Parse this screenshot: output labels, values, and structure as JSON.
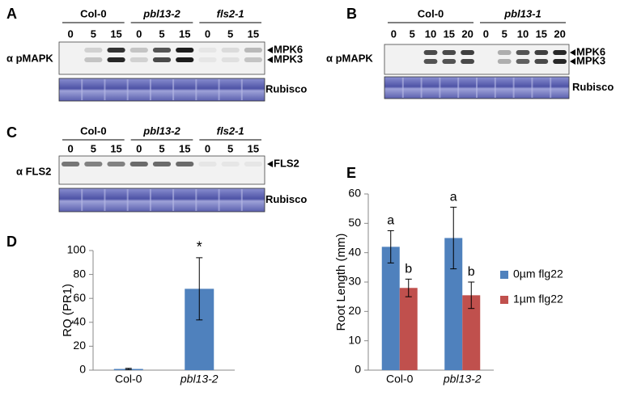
{
  "panels": [
    {
      "label": "A",
      "groups": [
        {
          "name": "Col-0",
          "times": [
            0,
            5,
            15
          ]
        },
        {
          "name": "pbl13-2",
          "times": [
            0,
            5,
            15
          ]
        },
        {
          "name": "fls2-1",
          "times": [
            0,
            5,
            15
          ]
        }
      ],
      "antibody": "α pMAPK",
      "bands": [
        "MPK6",
        "MPK3"
      ],
      "loading": "Rubisco"
    },
    {
      "label": "B",
      "groups": [
        {
          "name": "Col-0",
          "times": [
            0,
            5,
            10,
            15,
            20
          ]
        },
        {
          "name": "pbl13-1",
          "times": [
            0,
            5,
            10,
            15,
            20
          ]
        }
      ],
      "antibody": "α pMAPK",
      "bands": [
        "MPK6",
        "MPK3"
      ],
      "loading": "Rubisco"
    },
    {
      "label": "C",
      "groups": [
        {
          "name": "Col-0",
          "times": [
            0,
            5,
            15
          ]
        },
        {
          "name": "pbl13-2",
          "times": [
            0,
            5,
            15
          ]
        },
        {
          "name": "fls2-1",
          "times": [
            0,
            5,
            15
          ]
        }
      ],
      "antibody": "α FLS2",
      "bands": [
        "FLS2"
      ],
      "loading": "Rubisco"
    }
  ],
  "chart_data": [
    {
      "type": "bar",
      "panel": "D",
      "y_label": "RQ (PR1)",
      "categories": [
        "Col-0",
        "pbl13-2"
      ],
      "series": [
        {
          "color": "#4f81bd",
          "values": [
            1,
            68
          ],
          "errors": [
            0.5,
            26
          ]
        }
      ],
      "annotations": [
        {
          "index": 1,
          "text": "*"
        }
      ],
      "ylim": [
        0,
        100
      ],
      "yticks": [
        0,
        20,
        40,
        60,
        80,
        100
      ]
    },
    {
      "type": "bar",
      "panel": "E",
      "y_label": "Root Length (mm)",
      "categories": [
        "Col-0",
        "pbl13-2"
      ],
      "series": [
        {
          "name": "0µm flg22",
          "color": "#4f81bd",
          "values": [
            42,
            45
          ],
          "errors": [
            5.5,
            10.5
          ],
          "letters": [
            "a",
            "a"
          ]
        },
        {
          "name": "1µm flg22",
          "color": "#c0504d",
          "values": [
            28,
            25.5
          ],
          "errors": [
            3,
            4.5
          ],
          "letters": [
            "b",
            "b"
          ]
        }
      ],
      "ylim": [
        0,
        60
      ],
      "yticks": [
        0,
        10,
        20,
        30,
        40,
        50,
        60
      ]
    }
  ]
}
